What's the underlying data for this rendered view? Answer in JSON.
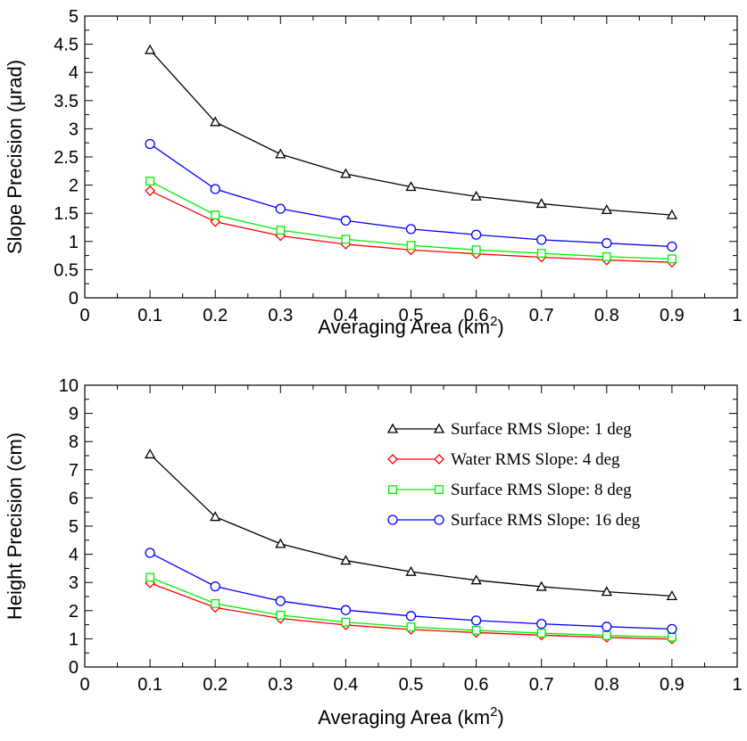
{
  "chart_data": [
    {
      "type": "line",
      "xlabel": "Averaging Area (km",
      "xlabel_sup": "2",
      "xlabel_end": ")",
      "ylabel": "Slope Precision (μrad)",
      "xlim": [
        0,
        1
      ],
      "ylim": [
        0,
        5
      ],
      "xticks": [
        "0",
        "0.1",
        "0.2",
        "0.3",
        "0.4",
        "0.5",
        "0.6",
        "0.7",
        "0.8",
        "0.9",
        "1"
      ],
      "yticks": [
        "0",
        "0.5",
        "1",
        "1.5",
        "2",
        "2.5",
        "3",
        "3.5",
        "4",
        "4.5",
        "5"
      ],
      "grid": false,
      "x": [
        0.1,
        0.2,
        0.3,
        0.4,
        0.5,
        0.6,
        0.7,
        0.8,
        0.9
      ],
      "series": [
        {
          "color": "#000000",
          "marker": "triangle",
          "values": [
            4.4,
            3.12,
            2.55,
            2.2,
            1.97,
            1.8,
            1.67,
            1.56,
            1.47
          ]
        },
        {
          "color": "#ff0000",
          "marker": "diamond",
          "values": [
            1.9,
            1.35,
            1.1,
            0.95,
            0.85,
            0.78,
            0.72,
            0.67,
            0.63
          ]
        },
        {
          "color": "#00ee00",
          "marker": "square",
          "values": [
            2.07,
            1.47,
            1.2,
            1.04,
            0.93,
            0.85,
            0.79,
            0.73,
            0.69
          ]
        },
        {
          "color": "#0000ff",
          "marker": "circle",
          "values": [
            2.73,
            1.93,
            1.58,
            1.37,
            1.22,
            1.12,
            1.03,
            0.97,
            0.91
          ]
        }
      ]
    },
    {
      "type": "line",
      "xlabel": "Averaging Area (km",
      "xlabel_sup": "2",
      "xlabel_end": ")",
      "ylabel": "Height Precision (cm)",
      "xlim": [
        0,
        1
      ],
      "ylim": [
        0,
        10
      ],
      "xticks": [
        "0",
        "0.1",
        "0.2",
        "0.3",
        "0.4",
        "0.5",
        "0.6",
        "0.7",
        "0.8",
        "0.9",
        "1"
      ],
      "yticks": [
        "0",
        "1",
        "2",
        "3",
        "4",
        "5",
        "6",
        "7",
        "8",
        "9",
        "10"
      ],
      "grid": false,
      "legend_position": "top-right",
      "x": [
        0.1,
        0.2,
        0.3,
        0.4,
        0.5,
        0.6,
        0.7,
        0.8,
        0.9
      ],
      "series": [
        {
          "name": "Surface RMS Slope: 1 deg",
          "color": "#000000",
          "marker": "triangle",
          "values": [
            7.55,
            5.33,
            4.37,
            3.78,
            3.38,
            3.08,
            2.85,
            2.67,
            2.52
          ]
        },
        {
          "name": "Water RMS Slope: 4 deg",
          "color": "#ff0000",
          "marker": "diamond",
          "values": [
            2.98,
            2.11,
            1.72,
            1.49,
            1.33,
            1.22,
            1.13,
            1.05,
            0.99
          ]
        },
        {
          "name": "Surface RMS Slope: 8 deg",
          "color": "#00ee00",
          "marker": "square",
          "values": [
            3.18,
            2.25,
            1.84,
            1.59,
            1.42,
            1.3,
            1.2,
            1.12,
            1.06
          ]
        },
        {
          "name": "Surface RMS Slope: 16 deg",
          "color": "#0000ff",
          "marker": "circle",
          "values": [
            4.05,
            2.86,
            2.34,
            2.02,
            1.81,
            1.65,
            1.53,
            1.43,
            1.35
          ]
        }
      ]
    }
  ]
}
